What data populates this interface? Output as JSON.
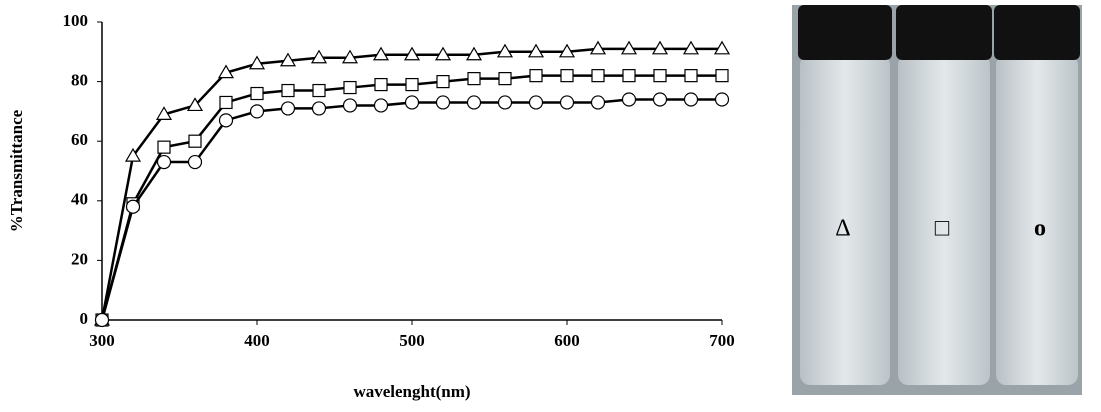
{
  "chart_data": {
    "type": "line",
    "x_label": "wavelenght(nm)",
    "y_label": "%Transmittance",
    "x": [
      300,
      320,
      340,
      360,
      380,
      400,
      420,
      440,
      460,
      480,
      500,
      520,
      540,
      560,
      580,
      600,
      620,
      640,
      660,
      680,
      700
    ],
    "series": [
      {
        "marker": "triangle",
        "color": "#000000",
        "values": [
          0,
          55,
          69,
          72,
          83,
          86,
          87,
          88,
          88,
          89,
          89,
          89,
          89,
          90,
          90,
          90,
          91,
          91,
          91,
          91,
          91
        ]
      },
      {
        "marker": "square",
        "color": "#000000",
        "values": [
          0,
          39,
          58,
          60,
          73,
          76,
          77,
          77,
          78,
          79,
          79,
          80,
          81,
          81,
          82,
          82,
          82,
          82,
          82,
          82,
          82
        ]
      },
      {
        "marker": "circle",
        "color": "#000000",
        "values": [
          0,
          38,
          53,
          53,
          67,
          70,
          71,
          71,
          72,
          72,
          73,
          73,
          73,
          73,
          73,
          73,
          73,
          74,
          74,
          74,
          74
        ]
      }
    ],
    "xlim": [
      300,
      700
    ],
    "xticks": [
      300,
      400,
      500,
      600,
      700
    ],
    "ylim": [
      0,
      100
    ],
    "yticks": [
      0,
      20,
      40,
      60,
      80,
      100
    ]
  },
  "photo": {
    "labels": [
      "Δ",
      "□",
      "o"
    ]
  }
}
